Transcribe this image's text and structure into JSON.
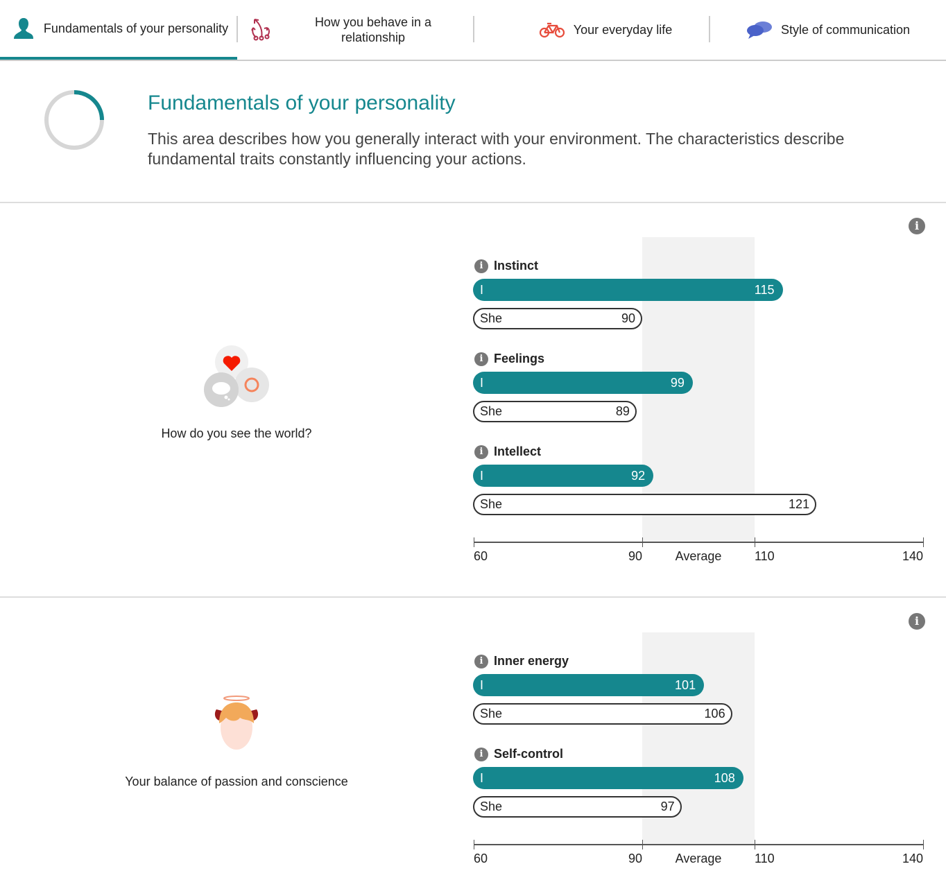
{
  "tabs": [
    {
      "label": "Fundamentals of your personality",
      "icon": "person-icon",
      "active": true
    },
    {
      "label": "How you behave in a relationship",
      "icon": "arrows-icon"
    },
    {
      "label": "Your everyday life",
      "icon": "bicycle-icon"
    },
    {
      "label": "Style of communication",
      "icon": "speech-bubbles-icon"
    }
  ],
  "intro": {
    "title": "Fundamentals of your personality",
    "description": "This area describes how you generally interact with your environment. The characteristics describe fundamental traits constantly influencing your actions.",
    "progress": 0.25
  },
  "colors": {
    "accent": "#15878e",
    "band": "#f2f2f2"
  },
  "sections": [
    {
      "caption": "How do you see the world?",
      "info": "i",
      "chart_data": {
        "type": "bar",
        "xlim": [
          60,
          140
        ],
        "average_range": [
          90,
          110
        ],
        "ticks": [
          "60",
          "90",
          "Average",
          "110",
          "140"
        ],
        "groups": [
          {
            "name": "Instinct",
            "me_label": "I",
            "me": 115,
            "she_label": "She",
            "she": 90
          },
          {
            "name": "Feelings",
            "me_label": "I",
            "me": 99,
            "she_label": "She",
            "she": 89
          },
          {
            "name": "Intellect",
            "me_label": "I",
            "me": 92,
            "she_label": "She",
            "she": 121
          }
        ]
      }
    },
    {
      "caption": "Your balance of passion and conscience",
      "info": "i",
      "chart_data": {
        "type": "bar",
        "xlim": [
          60,
          140
        ],
        "average_range": [
          90,
          110
        ],
        "ticks": [
          "60",
          "90",
          "Average",
          "110",
          "140"
        ],
        "groups": [
          {
            "name": "Inner energy",
            "me_label": "I",
            "me": 101,
            "she_label": "She",
            "she": 106
          },
          {
            "name": "Self-control",
            "me_label": "I",
            "me": 108,
            "she_label": "She",
            "she": 97
          }
        ]
      }
    }
  ]
}
